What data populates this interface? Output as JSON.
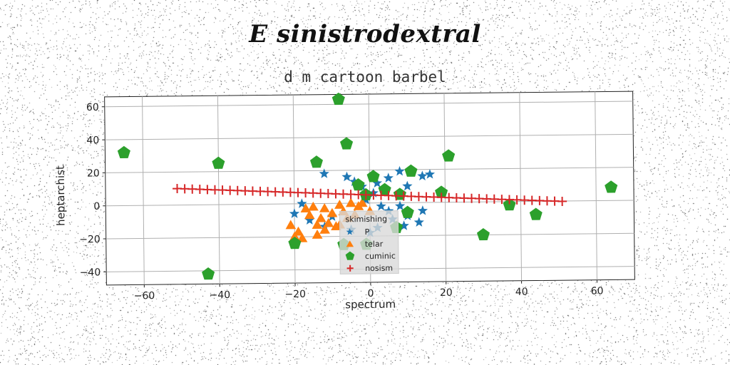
{
  "chart_data": {
    "type": "scatter",
    "title": "E sinistrodextral",
    "subtitle": "d m cartoon barbel",
    "xlabel": "spectrum",
    "ylabel": "heptarchist",
    "xlim": [
      -70,
      70
    ],
    "ylim": [
      -48,
      66
    ],
    "xticks": [
      -60,
      -40,
      -20,
      0,
      20,
      40,
      60
    ],
    "yticks": [
      -40,
      -20,
      0,
      20,
      40,
      60
    ],
    "xtick_labels": [
      "−60",
      "−40",
      "−20",
      "0",
      "20",
      "40",
      "60"
    ],
    "ytick_labels": [
      "−40",
      "−20",
      "0",
      "20",
      "40",
      "60"
    ],
    "grid": true,
    "legend": {
      "title": "skimishing",
      "placement": "lower-center"
    },
    "series": [
      {
        "name": "P",
        "marker": "star",
        "color": "#1f77b4",
        "points": [
          [
            -12,
            18
          ],
          [
            -6,
            16
          ],
          [
            -4,
            13
          ],
          [
            2,
            12
          ],
          [
            5,
            15
          ],
          [
            8,
            19
          ],
          [
            10,
            10
          ],
          [
            14,
            16
          ],
          [
            16,
            17
          ],
          [
            -2,
            10
          ],
          [
            1,
            6
          ],
          [
            -1,
            2
          ],
          [
            3,
            -2
          ],
          [
            5,
            -5
          ],
          [
            8,
            -2
          ],
          [
            10,
            -8
          ],
          [
            13,
            -12
          ],
          [
            14,
            -5
          ],
          [
            -20,
            -6
          ],
          [
            -18,
            0
          ],
          [
            -16,
            -10
          ],
          [
            -12,
            -14
          ],
          [
            -10,
            -8
          ],
          [
            -5,
            -16
          ],
          [
            0,
            -18
          ],
          [
            2,
            -15
          ],
          [
            6,
            -10
          ],
          [
            9,
            -14
          ]
        ]
      },
      {
        "name": "telar",
        "marker": "triangle",
        "color": "#ff7f0e",
        "points": [
          [
            -21,
            -13
          ],
          [
            -19,
            -17
          ],
          [
            -17,
            -3
          ],
          [
            -15,
            -2
          ],
          [
            -14,
            -13
          ],
          [
            -13,
            -9
          ],
          [
            -12,
            -3
          ],
          [
            -12,
            -16
          ],
          [
            -11,
            -12
          ],
          [
            -10,
            -6
          ],
          [
            -9,
            -14
          ],
          [
            -8,
            -1
          ],
          [
            -7,
            -5
          ],
          [
            -6,
            -9
          ],
          [
            -5,
            0
          ],
          [
            -3,
            -2
          ],
          [
            -20,
            -20
          ],
          [
            -18,
            -21
          ],
          [
            -14,
            -19
          ],
          [
            -8,
            -13
          ],
          [
            -4,
            -7
          ],
          [
            -2,
            0
          ],
          [
            0,
            -5
          ],
          [
            -16,
            -7
          ]
        ]
      },
      {
        "name": "cuminic",
        "marker": "pentagon",
        "color": "#2ca02c",
        "points": [
          [
            -8,
            63
          ],
          [
            -65,
            32
          ],
          [
            -40,
            25
          ],
          [
            -6,
            36
          ],
          [
            -14,
            25
          ],
          [
            1,
            16
          ],
          [
            11,
            19
          ],
          [
            21,
            28
          ],
          [
            -3,
            11
          ],
          [
            4,
            8
          ],
          [
            8,
            5
          ],
          [
            -1,
            5
          ],
          [
            19,
            6
          ],
          [
            64,
            8
          ],
          [
            37,
            -2
          ],
          [
            44,
            -8
          ],
          [
            10,
            -6
          ],
          [
            7,
            -15
          ],
          [
            -20,
            -24
          ],
          [
            -43,
            -42
          ],
          [
            30,
            -20
          ],
          [
            -7,
            -25
          ],
          [
            -1,
            -25
          ]
        ]
      },
      {
        "name": "nosism",
        "marker": "plus",
        "color": "#d62728",
        "points": [
          [
            -51,
            10
          ],
          [
            -49,
            9.8
          ],
          [
            -47,
            9.6
          ],
          [
            -45,
            9.4
          ],
          [
            -43,
            9.2
          ],
          [
            -41,
            9.0
          ],
          [
            -39,
            8.8
          ],
          [
            -37,
            8.6
          ],
          [
            -35,
            8.4
          ],
          [
            -33,
            8.2
          ],
          [
            -31,
            8.0
          ],
          [
            -29,
            7.8
          ],
          [
            -27,
            7.6
          ],
          [
            -25,
            7.4
          ],
          [
            -23,
            7.2
          ],
          [
            -21,
            7.0
          ],
          [
            -19,
            6.8
          ],
          [
            -17,
            6.6
          ],
          [
            -15,
            6.4
          ],
          [
            -13,
            6.2
          ],
          [
            -11,
            6.0
          ],
          [
            -9,
            5.8
          ],
          [
            -7,
            5.6
          ],
          [
            -5,
            5.4
          ],
          [
            -3,
            5.2
          ],
          [
            -1,
            5.0
          ],
          [
            1,
            4.8
          ],
          [
            3,
            4.6
          ],
          [
            5,
            4.4
          ],
          [
            7,
            4.2
          ],
          [
            9,
            4.0
          ],
          [
            11,
            3.8
          ],
          [
            13,
            3.6
          ],
          [
            15,
            3.4
          ],
          [
            17,
            3.2
          ],
          [
            19,
            3.0
          ],
          [
            21,
            2.8
          ],
          [
            23,
            2.6
          ],
          [
            25,
            2.4
          ],
          [
            27,
            2.2
          ],
          [
            29,
            2.0
          ],
          [
            31,
            1.8
          ],
          [
            33,
            1.6
          ],
          [
            35,
            1.4
          ],
          [
            37,
            1.2
          ],
          [
            39,
            1.0
          ],
          [
            41,
            0.8
          ],
          [
            43,
            0.6
          ],
          [
            45,
            0.4
          ],
          [
            47,
            0.2
          ],
          [
            49,
            0.0
          ],
          [
            51,
            -0.2
          ]
        ]
      }
    ]
  }
}
